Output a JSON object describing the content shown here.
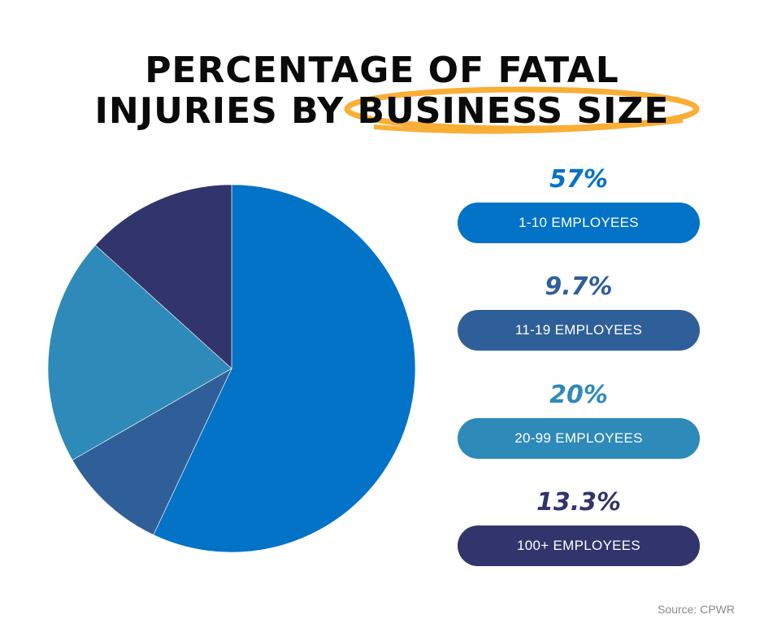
{
  "title": {
    "line1": "PERCENTAGE OF FATAL",
    "line2_prefix": "INJURIES BY",
    "line2_highlight": "BUSINESS SIZE",
    "highlight_color": "#F9AE35"
  },
  "legend": [
    {
      "percent": "57%",
      "label": "1-10 EMPLOYEES",
      "color": "#0273C6"
    },
    {
      "percent": "9.7%",
      "label": "11-19 EMPLOYEES",
      "color": "#2F5F98"
    },
    {
      "percent": "20%",
      "label": "20-99 EMPLOYEES",
      "color": "#2E8AB8"
    },
    {
      "percent": "13.3%",
      "label": "100+ EMPLOYEES",
      "color": "#31356B"
    }
  ],
  "source": "Source: CPWR",
  "chart_data": {
    "type": "pie",
    "title": "Percentage of Fatal Injuries by Business Size",
    "categories": [
      "1-10 Employees",
      "11-19 Employees",
      "20-99 Employees",
      "100+ Employees"
    ],
    "values": [
      57,
      9.7,
      20,
      13.3
    ],
    "unit": "%",
    "colors": [
      "#0273C6",
      "#2F5F98",
      "#2E8AB8",
      "#31356B"
    ],
    "start_angle": "12 o'clock",
    "direction": "clockwise",
    "legend_position": "right",
    "source": "CPWR"
  }
}
